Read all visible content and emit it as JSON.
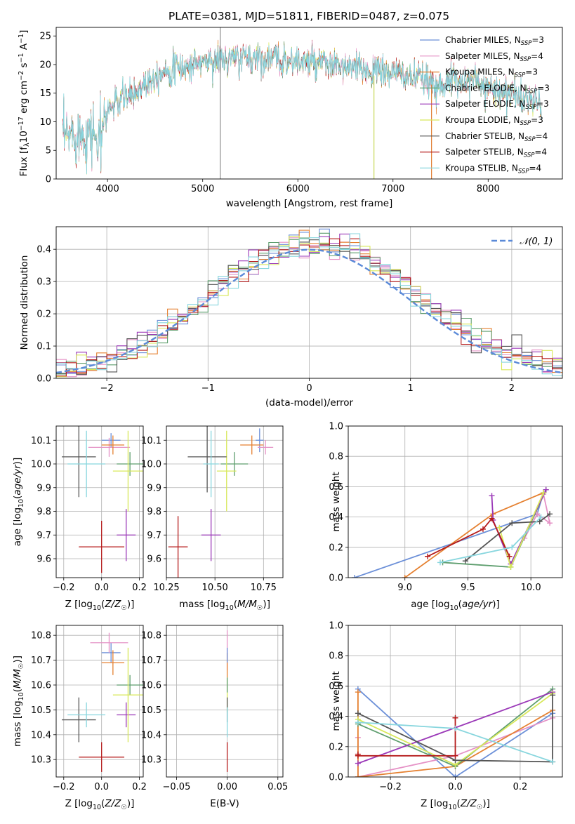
{
  "title": "PLATE=0381, MJD=51811, FIBERID=0487, z=0.075",
  "colors": {
    "Chabrier MILES": "#6b8fd8",
    "Salpeter MILES": "#e592c6",
    "Kroupa MILES": "#e58030",
    "Chabrier ELODIE": "#5e9e6e",
    "Salpeter ELODIE": "#9b39b8",
    "Kroupa ELODIE": "#d8e85a",
    "Chabrier STELIB": "#555555",
    "Salpeter STELIB": "#b51a1a",
    "Kroupa STELIB": "#88d6de",
    "data": "#888888"
  },
  "legend": [
    {
      "label": "Chabrier MILES, N",
      "sub": "SSP",
      "tail": "=3",
      "key": "Chabrier MILES"
    },
    {
      "label": "Salpeter MILES, N",
      "sub": "SSP",
      "tail": "=4",
      "key": "Salpeter MILES"
    },
    {
      "label": "Kroupa MILES, N",
      "sub": "SSP",
      "tail": "=3",
      "key": "Kroupa MILES"
    },
    {
      "label": "Chabrier ELODIE, N",
      "sub": "SSP",
      "tail": "=3",
      "key": "Chabrier ELODIE"
    },
    {
      "label": "Salpeter ELODIE, N",
      "sub": "SSP",
      "tail": "=3",
      "key": "Salpeter ELODIE"
    },
    {
      "label": "Kroupa ELODIE, N",
      "sub": "SSP",
      "tail": "=3",
      "key": "Kroupa ELODIE"
    },
    {
      "label": "Chabrier STELIB, N",
      "sub": "SSP",
      "tail": "=4",
      "key": "Chabrier STELIB"
    },
    {
      "label": "Salpeter STELIB, N",
      "sub": "SSP",
      "tail": "=4",
      "key": "Salpeter STELIB"
    },
    {
      "label": "Kroupa STELIB, N",
      "sub": "SSP",
      "tail": "=4",
      "key": "Kroupa STELIB"
    }
  ],
  "chart_data": [
    {
      "id": "spectrum",
      "type": "line",
      "xlabel": "wavelength [Angstrom, rest frame]",
      "ylabel": "Flux [fλ10⁻¹⁷ erg cm⁻² s⁻¹ A⁻¹]",
      "xlim": [
        3460,
        8780
      ],
      "ylim": [
        0,
        26.5
      ],
      "xticks": [
        4000,
        5000,
        6000,
        7000,
        8000
      ],
      "yticks": [
        0,
        5,
        10,
        15,
        20,
        25
      ],
      "grid": false,
      "legend_position": "top-right",
      "continuum": [
        [
          3530,
          7
        ],
        [
          3650,
          8
        ],
        [
          3800,
          8
        ],
        [
          3900,
          8.5
        ],
        [
          4000,
          12
        ],
        [
          4150,
          14
        ],
        [
          4300,
          15
        ],
        [
          4400,
          17
        ],
        [
          4600,
          19
        ],
        [
          4800,
          19.5
        ],
        [
          5000,
          20.5
        ],
        [
          5300,
          21
        ],
        [
          5600,
          21.2
        ],
        [
          6000,
          20.5
        ],
        [
          6500,
          19.5
        ],
        [
          7000,
          18.5
        ],
        [
          7300,
          17.5
        ],
        [
          7400,
          16.5
        ],
        [
          7800,
          17.5
        ],
        [
          8200,
          15
        ],
        [
          8400,
          14
        ],
        [
          8560,
          13
        ]
      ]
    },
    {
      "id": "residuals",
      "type": "histogram",
      "xlabel": "(data-model)/error",
      "ylabel": "Normed distribution",
      "xlim": [
        -2.5,
        2.5
      ],
      "ylim": [
        0,
        0.47
      ],
      "xticks": [
        -2,
        -1,
        0,
        1,
        2
      ],
      "yticks": [
        0.0,
        0.1,
        0.2,
        0.3,
        0.4
      ],
      "grid": true,
      "legend_position": "top-right",
      "bin_width": 0.1,
      "reference_curve": {
        "label": "N(0,1)",
        "mean": 0,
        "sigma": 1,
        "color": "#5b8ad8"
      }
    },
    {
      "id": "age-vs-Z",
      "type": "errorbar",
      "xlabel": "Z [log10(Z/Z☉)]",
      "ylabel": "age  [log10(age/yr)]",
      "xlim": [
        -0.24,
        0.22
      ],
      "ylim": [
        9.52,
        10.16
      ],
      "xticks": [
        -0.2,
        0.0,
        0.2
      ],
      "yticks": [
        9.6,
        9.7,
        9.8,
        9.9,
        10.0,
        10.1
      ],
      "grid": true,
      "points": [
        {
          "key": "Chabrier MILES",
          "x": 0.05,
          "xerr": 0.05,
          "y": 10.1,
          "yerr": 0.03
        },
        {
          "key": "Salpeter MILES",
          "x": 0.04,
          "xerr": 0.11,
          "y": 10.07,
          "yerr": 0.04
        },
        {
          "key": "Kroupa MILES",
          "x": 0.06,
          "xerr": 0.06,
          "y": 10.08,
          "yerr": 0.04
        },
        {
          "key": "Chabrier ELODIE",
          "x": 0.15,
          "xerr": 0.07,
          "y": 10.0,
          "yerr": 0.05
        },
        {
          "key": "Salpeter ELODIE",
          "x": 0.13,
          "xerr": 0.05,
          "y": 9.7,
          "yerr": 0.11
        },
        {
          "key": "Kroupa ELODIE",
          "x": 0.14,
          "xerr": 0.08,
          "y": 9.97,
          "yerr": 0.17
        },
        {
          "key": "Chabrier STELIB",
          "x": -0.12,
          "xerr": 0.09,
          "y": 10.03,
          "yerr": 0.17
        },
        {
          "key": "Salpeter STELIB",
          "x": 0.0,
          "xerr": 0.12,
          "y": 9.65,
          "yerr": 0.11
        },
        {
          "key": "Kroupa STELIB",
          "x": -0.08,
          "xerr": 0.1,
          "y": 10.0,
          "yerr": 0.14
        }
      ]
    },
    {
      "id": "age-vs-mass",
      "type": "errorbar",
      "xlabel": "mass [log10(M/M☉)]",
      "ylabel": "",
      "xlim": [
        10.25,
        10.85
      ],
      "ylim": [
        9.52,
        10.16
      ],
      "xticks": [
        10.25,
        10.5,
        10.75
      ],
      "yticks": [
        9.6,
        9.7,
        9.8,
        9.9,
        10.0,
        10.1
      ],
      "grid": true,
      "points": [
        {
          "key": "Chabrier MILES",
          "x": 10.73,
          "xerr": 0.02,
          "y": 10.1,
          "yerr": 0.05
        },
        {
          "key": "Salpeter MILES",
          "x": 10.76,
          "xerr": 0.04,
          "y": 10.07,
          "yerr": 0.03
        },
        {
          "key": "Kroupa MILES",
          "x": 10.69,
          "xerr": 0.06,
          "y": 10.08,
          "yerr": 0.04
        },
        {
          "key": "Chabrier ELODIE",
          "x": 10.6,
          "xerr": 0.07,
          "y": 10.0,
          "yerr": 0.05
        },
        {
          "key": "Salpeter ELODIE",
          "x": 10.48,
          "xerr": 0.05,
          "y": 9.7,
          "yerr": 0.11
        },
        {
          "key": "Kroupa ELODIE",
          "x": 10.56,
          "xerr": 0.05,
          "y": 9.97,
          "yerr": 0.17
        },
        {
          "key": "Chabrier STELIB",
          "x": 10.46,
          "xerr": 0.1,
          "y": 10.03,
          "yerr": 0.15
        },
        {
          "key": "Salpeter STELIB",
          "x": 10.31,
          "xerr": 0.05,
          "y": 9.65,
          "yerr": 0.13
        },
        {
          "key": "Kroupa STELIB",
          "x": 10.48,
          "xerr": 0.04,
          "y": 10.0,
          "yerr": 0.14
        }
      ]
    },
    {
      "id": "weight-vs-age",
      "type": "line",
      "xlabel": "age  [log10(age/yr)]",
      "ylabel": "mass weight",
      "xlim": [
        8.55,
        10.25
      ],
      "ylim": [
        0,
        1.0
      ],
      "xticks": [
        9.0,
        9.5,
        10.0
      ],
      "yticks": [
        0.0,
        0.2,
        0.4,
        0.6,
        0.8,
        1.0
      ],
      "grid": true,
      "series": [
        {
          "key": "Chabrier MILES",
          "x": [
            8.6,
            10.05,
            10.1
          ],
          "y": [
            0.0,
            0.42,
            0.56
          ]
        },
        {
          "key": "Salpeter MILES",
          "x": [
            9.95,
            10.05,
            10.15,
            10.1
          ],
          "y": [
            0.26,
            0.42,
            0.36,
            0.55
          ]
        },
        {
          "key": "Kroupa MILES",
          "x": [
            9.0,
            9.7,
            10.1
          ],
          "y": [
            0.0,
            0.42,
            0.56
          ]
        },
        {
          "key": "Chabrier ELODIE",
          "x": [
            9.3,
            9.84,
            10.12
          ],
          "y": [
            0.1,
            0.07,
            0.58
          ]
        },
        {
          "key": "Salpeter ELODIE",
          "x": [
            9.69,
            9.7,
            9.84,
            10.12
          ],
          "y": [
            0.54,
            0.38,
            0.09,
            0.58
          ]
        },
        {
          "key": "Kroupa ELODIE",
          "x": [
            9.75,
            9.84,
            10.1
          ],
          "y": [
            0.33,
            0.07,
            0.56
          ]
        },
        {
          "key": "Chabrier STELIB",
          "x": [
            9.48,
            9.85,
            10.07,
            10.15
          ],
          "y": [
            0.11,
            0.36,
            0.37,
            0.42
          ]
        },
        {
          "key": "Salpeter STELIB",
          "x": [
            9.18,
            9.62,
            9.69,
            9.83
          ],
          "y": [
            0.14,
            0.32,
            0.39,
            0.14
          ]
        },
        {
          "key": "Kroupa STELIB",
          "x": [
            9.28,
            9.85,
            10.08
          ],
          "y": [
            0.1,
            0.2,
            0.4
          ]
        }
      ]
    },
    {
      "id": "mass-vs-Z",
      "type": "errorbar",
      "xlabel": "Z [log10(Z/Z☉)]",
      "ylabel": "mass [log10(M/M☉)]",
      "xlim": [
        -0.24,
        0.22
      ],
      "ylim": [
        10.23,
        10.84
      ],
      "xticks": [
        -0.2,
        0.0,
        0.2
      ],
      "yticks": [
        10.3,
        10.4,
        10.5,
        10.6,
        10.7,
        10.8
      ],
      "grid": true,
      "points": [
        {
          "key": "Chabrier MILES",
          "x": 0.05,
          "xerr": 0.05,
          "y": 10.73,
          "yerr": 0.04
        },
        {
          "key": "Salpeter MILES",
          "x": 0.04,
          "xerr": 0.1,
          "y": 10.77,
          "yerr": 0.04
        },
        {
          "key": "Kroupa MILES",
          "x": 0.06,
          "xerr": 0.06,
          "y": 10.69,
          "yerr": 0.05
        },
        {
          "key": "Chabrier ELODIE",
          "x": 0.15,
          "xerr": 0.07,
          "y": 10.6,
          "yerr": 0.04
        },
        {
          "key": "Salpeter ELODIE",
          "x": 0.13,
          "xerr": 0.05,
          "y": 10.48,
          "yerr": 0.05
        },
        {
          "key": "Kroupa ELODIE",
          "x": 0.14,
          "xerr": 0.08,
          "y": 10.56,
          "yerr": 0.19
        },
        {
          "key": "Chabrier STELIB",
          "x": -0.12,
          "xerr": 0.09,
          "y": 10.46,
          "yerr": 0.09
        },
        {
          "key": "Salpeter STELIB",
          "x": 0.0,
          "xerr": 0.12,
          "y": 10.31,
          "yerr": 0.06
        },
        {
          "key": "Kroupa STELIB",
          "x": -0.08,
          "xerr": 0.1,
          "y": 10.48,
          "yerr": 0.05
        }
      ]
    },
    {
      "id": "mass-vs-EBV",
      "type": "errorbar",
      "xlabel": "E(B-V)",
      "ylabel": "",
      "xlim": [
        -0.06,
        0.055
      ],
      "ylim": [
        10.23,
        10.84
      ],
      "xticks": [
        -0.05,
        0.0,
        0.05
      ],
      "yticks": [
        10.3,
        10.4,
        10.5,
        10.6,
        10.7,
        10.8
      ],
      "grid": true,
      "points": [
        {
          "key": "Salpeter MILES",
          "x": 0.0,
          "xerr": 0.0,
          "y": 10.74,
          "yerr": 0.08
        },
        {
          "key": "Kroupa MILES",
          "x": 0.0,
          "xerr": 0.0,
          "y": 10.68,
          "yerr": 0.05
        },
        {
          "key": "Chabrier MILES",
          "x": 0.0,
          "xerr": 0.0,
          "y": 10.72,
          "yerr": 0.03
        },
        {
          "key": "Kroupa ELODIE",
          "x": 0.0,
          "xerr": 0.0,
          "y": 10.56,
          "yerr": 0.07
        },
        {
          "key": "Chabrier ELODIE",
          "x": 0.0,
          "xerr": 0.0,
          "y": 10.6,
          "yerr": 0.03
        },
        {
          "key": "Chabrier STELIB",
          "x": 0.0,
          "xerr": 0.0,
          "y": 10.5,
          "yerr": 0.05
        },
        {
          "key": "Kroupa STELIB",
          "x": 0.0,
          "xerr": 0.0,
          "y": 10.45,
          "yerr": 0.06
        },
        {
          "key": "Salpeter STELIB",
          "x": 0.0,
          "xerr": 0.0,
          "y": 10.31,
          "yerr": 0.06
        }
      ]
    },
    {
      "id": "weight-vs-Z",
      "type": "line",
      "xlabel": "Z [log10(Z/Z☉)]",
      "ylabel": "mass weight",
      "xlim": [
        -0.33,
        0.33
      ],
      "ylim": [
        0,
        1.0
      ],
      "xticks": [
        -0.2,
        0.0,
        0.2
      ],
      "yticks": [
        0.0,
        0.2,
        0.4,
        0.6,
        0.8,
        1.0
      ],
      "grid": true,
      "series": [
        {
          "key": "Chabrier MILES",
          "x": [
            -0.3,
            0.0,
            0.3
          ],
          "y": [
            0.58,
            0.0,
            0.42
          ]
        },
        {
          "key": "Salpeter MILES",
          "x": [
            -0.3,
            -0.3,
            0.0,
            0.3
          ],
          "y": [
            0.26,
            0.0,
            0.14,
            0.39
          ]
        },
        {
          "key": "Kroupa MILES",
          "x": [
            -0.3,
            -0.3,
            0.0,
            0.3
          ],
          "y": [
            0.56,
            0.0,
            0.07,
            0.44
          ]
        },
        {
          "key": "Chabrier ELODIE",
          "x": [
            -0.3,
            0.0,
            0.3
          ],
          "y": [
            0.35,
            0.07,
            0.58
          ]
        },
        {
          "key": "Salpeter ELODIE",
          "x": [
            -0.3,
            0.3
          ],
          "y": [
            0.09,
            0.56
          ]
        },
        {
          "key": "Kroupa ELODIE",
          "x": [
            -0.3,
            0.0,
            0.3
          ],
          "y": [
            0.38,
            0.08,
            0.55
          ]
        },
        {
          "key": "Chabrier STELIB",
          "x": [
            -0.3,
            0.0,
            0.3,
            0.3
          ],
          "y": [
            0.42,
            0.11,
            0.1,
            0.54
          ]
        },
        {
          "key": "Salpeter STELIB",
          "x": [
            -0.3,
            -0.3,
            0.0,
            0.0
          ],
          "y": [
            0.15,
            0.14,
            0.14,
            0.39
          ]
        },
        {
          "key": "Kroupa STELIB",
          "x": [
            -0.3,
            0.0,
            0.3
          ],
          "y": [
            0.36,
            0.32,
            0.1
          ]
        }
      ]
    }
  ]
}
